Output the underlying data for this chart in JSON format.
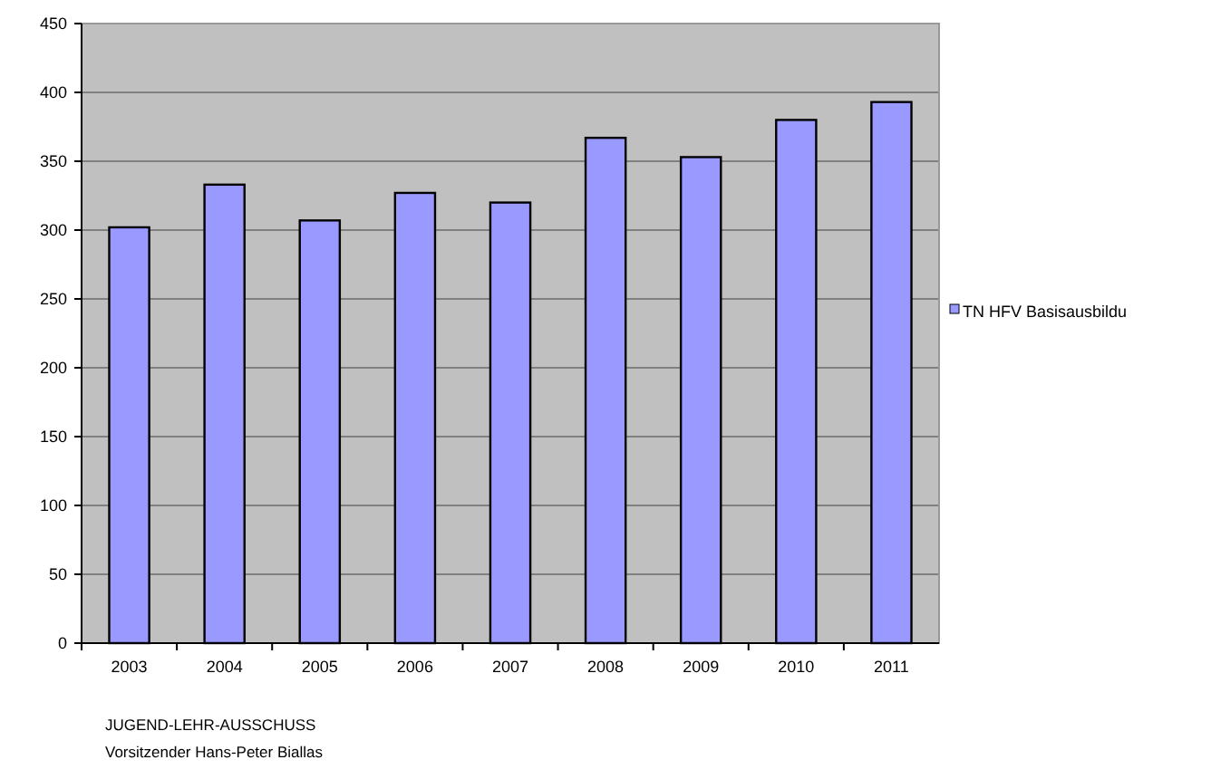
{
  "chart_data": {
    "type": "bar",
    "categories": [
      "2003",
      "2004",
      "2005",
      "2006",
      "2007",
      "2008",
      "2009",
      "2010",
      "2011"
    ],
    "series": [
      {
        "name": "TN HFV Basisausbildu",
        "color": "#9999ff",
        "values": [
          302,
          333,
          307,
          327,
          320,
          367,
          353,
          380,
          393
        ]
      }
    ],
    "ylim": [
      0,
      450
    ],
    "yticks": [
      0,
      50,
      100,
      150,
      200,
      250,
      300,
      350,
      400,
      450
    ],
    "grid": "y",
    "legend": "right",
    "annotations": [
      "JUGEND-LEHR-AUSSCHUSS",
      "Vorsitzender  Hans-Peter Biallas"
    ]
  }
}
